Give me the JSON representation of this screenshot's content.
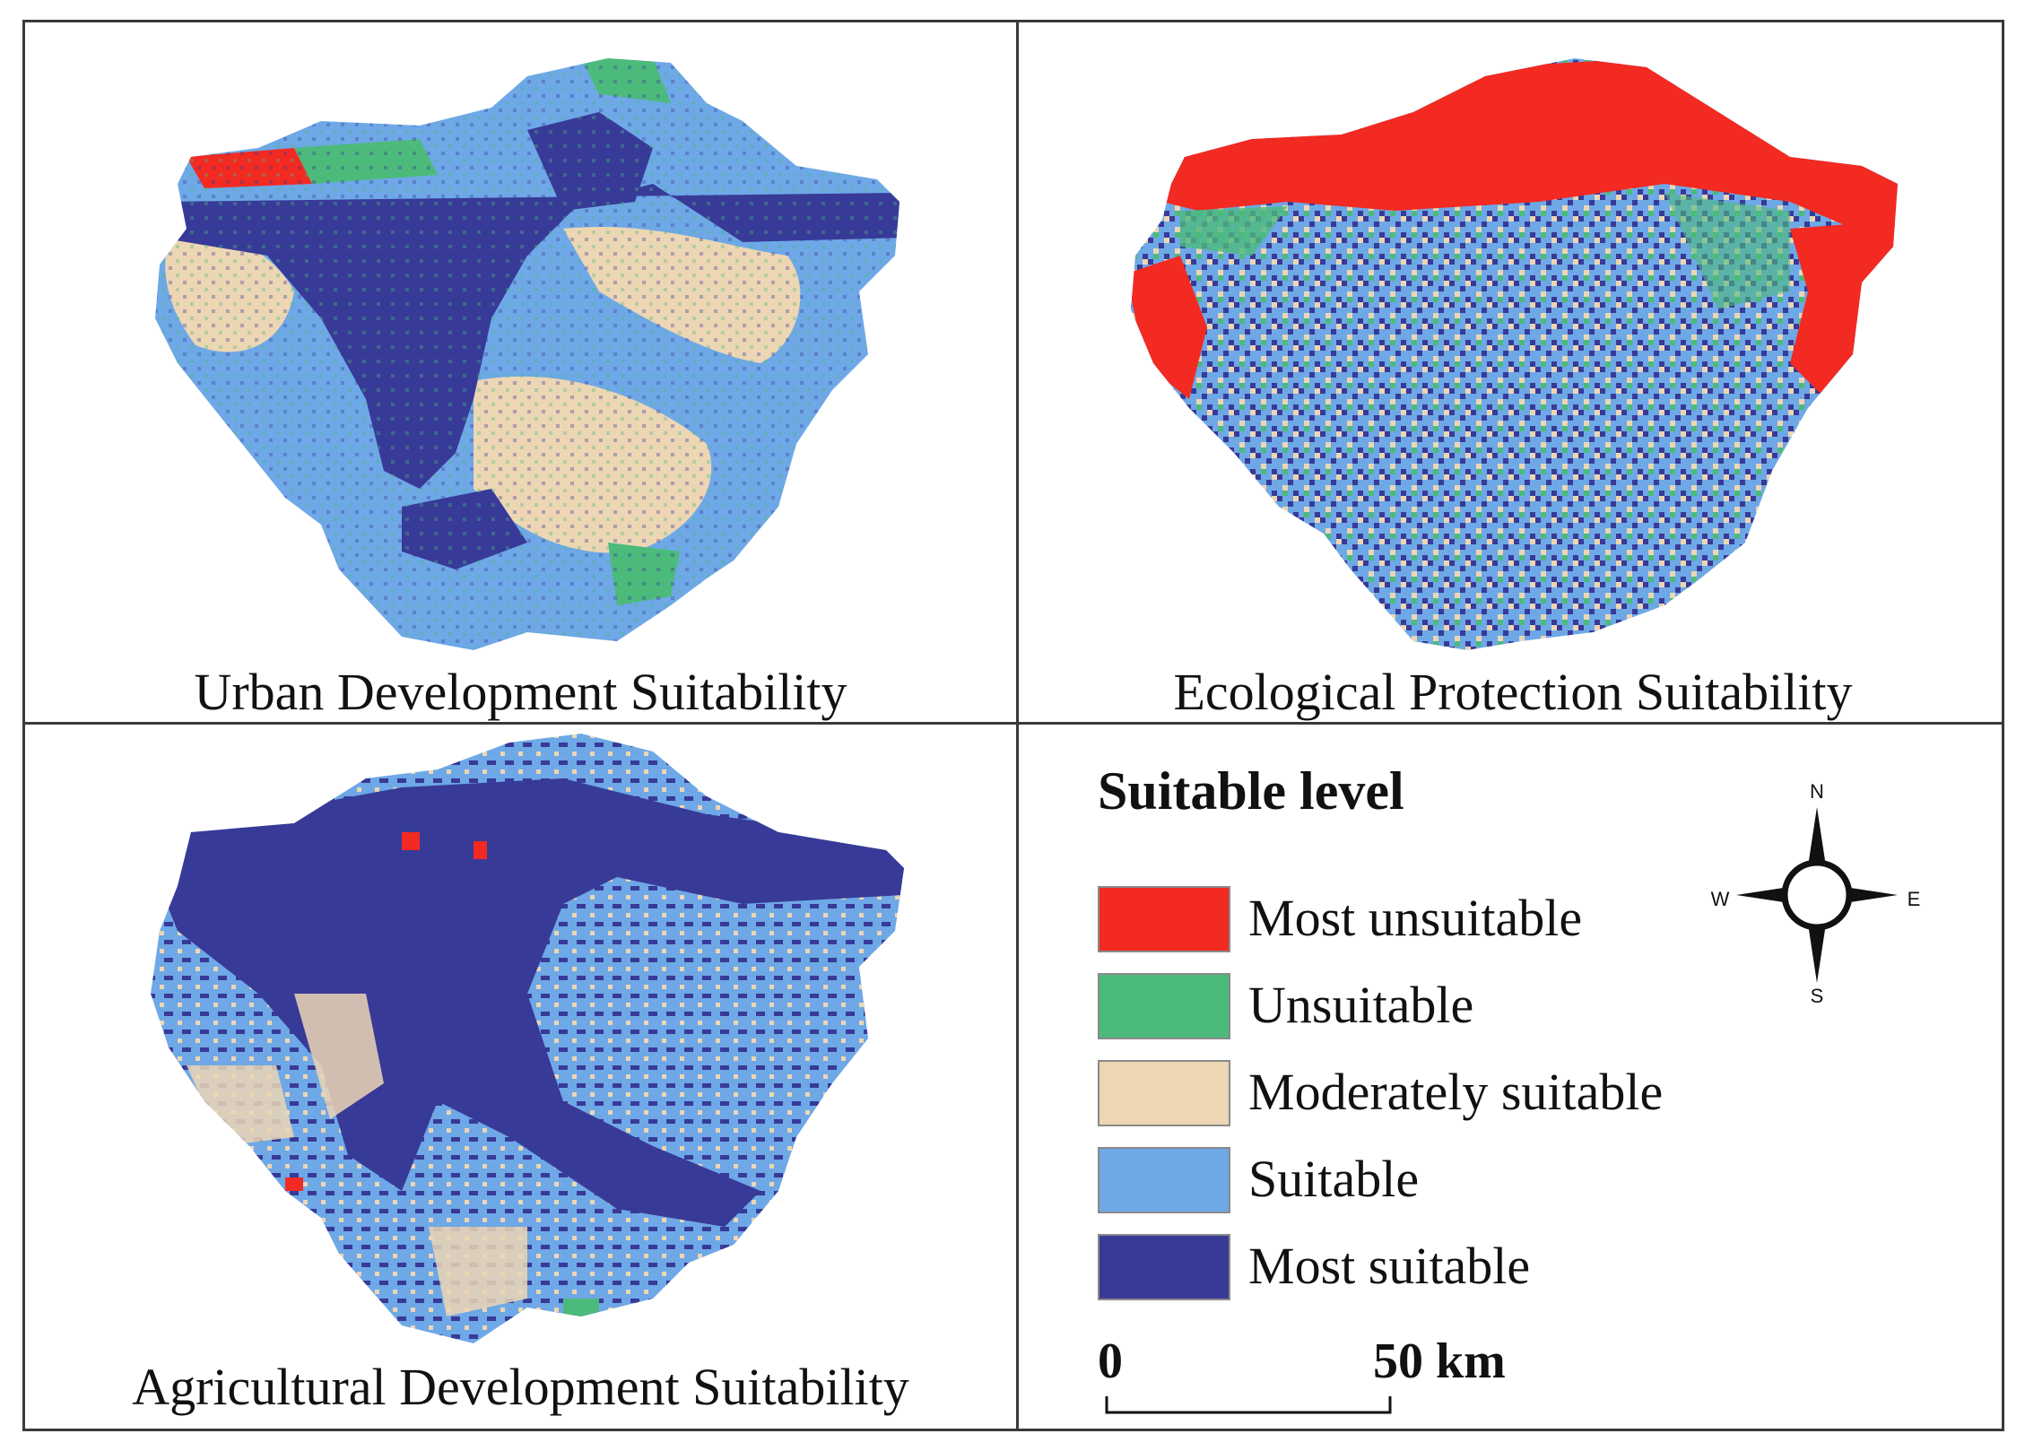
{
  "figure": {
    "panels": [
      {
        "id": "urban",
        "caption": "Urban Development Suitability"
      },
      {
        "id": "ecological",
        "caption": "Ecological Protection  Suitability"
      },
      {
        "id": "agricultural",
        "caption": "Agricultural Development Suitability"
      }
    ]
  },
  "legend": {
    "title": "Suitable level",
    "items": [
      {
        "label": "Most unsuitable",
        "color": "#f22a22"
      },
      {
        "label": "Unsuitable",
        "color": "#4cba7b"
      },
      {
        "label": "Moderately suitable",
        "color": "#ecd6b4"
      },
      {
        "label": "Suitable",
        "color": "#6ea8e6"
      },
      {
        "label": "Most suitable",
        "color": "#383a98"
      }
    ],
    "scale_bar": {
      "start": "0",
      "end": "50 km"
    },
    "north_arrow": {
      "n": "N",
      "s": "S",
      "e": "E",
      "w": "W"
    }
  }
}
